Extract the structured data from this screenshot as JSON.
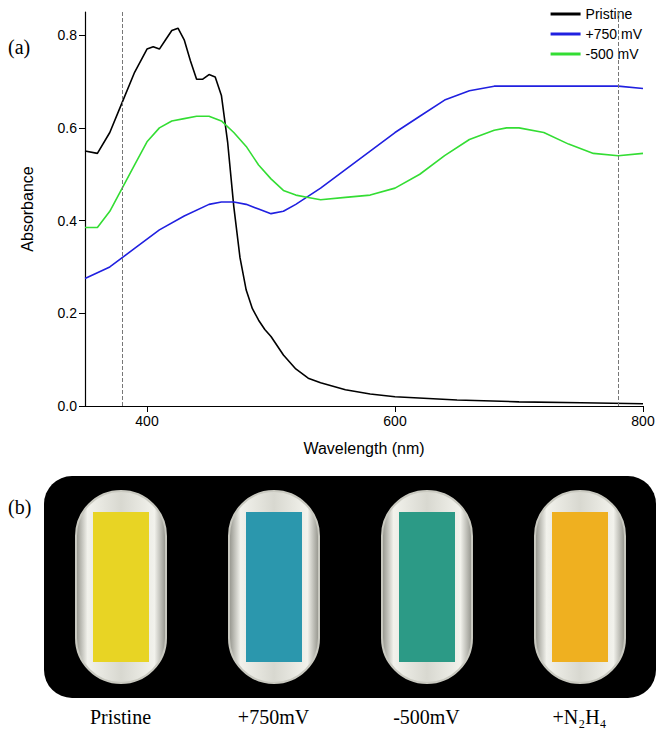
{
  "chart_data": {
    "type": "line",
    "panel_label": "(a)",
    "x_label": "Wavelength (nm)",
    "y_label": "Absorbance",
    "xlim": [
      350,
      800
    ],
    "xticks": [
      400,
      600,
      800
    ],
    "ylim": [
      0,
      0.85
    ],
    "yticks": [
      {
        "value": 0,
        "label": "0.0"
      },
      0.2,
      0.4,
      0.6,
      0.8
    ],
    "grid": false,
    "legend": "upper right",
    "vertical_lines": [
      380,
      780
    ],
    "series": [
      {
        "name": "Pristine",
        "color": "#000000",
        "line_style": "solid",
        "x": [
          350,
          360,
          370,
          380,
          390,
          400,
          405,
          410,
          415,
          420,
          425,
          430,
          435,
          440,
          445,
          450,
          455,
          460,
          465,
          470,
          475,
          480,
          485,
          490,
          495,
          500,
          510,
          520,
          530,
          540,
          560,
          580,
          600,
          650,
          700,
          750,
          800
        ],
        "values": [
          0.55,
          0.545,
          0.59,
          0.655,
          0.72,
          0.77,
          0.775,
          0.77,
          0.79,
          0.81,
          0.815,
          0.79,
          0.745,
          0.705,
          0.705,
          0.715,
          0.71,
          0.67,
          0.57,
          0.43,
          0.32,
          0.25,
          0.21,
          0.185,
          0.165,
          0.15,
          0.11,
          0.08,
          0.06,
          0.05,
          0.035,
          0.026,
          0.02,
          0.013,
          0.009,
          0.007,
          0.005
        ]
      },
      {
        "name": "+750 mV",
        "color": "#2020e0",
        "line_style": "solid",
        "x": [
          350,
          370,
          390,
          410,
          430,
          450,
          460,
          470,
          480,
          490,
          500,
          510,
          520,
          540,
          560,
          580,
          600,
          620,
          640,
          660,
          680,
          700,
          720,
          740,
          760,
          780,
          800
        ],
        "values": [
          0.275,
          0.3,
          0.34,
          0.38,
          0.41,
          0.435,
          0.44,
          0.44,
          0.435,
          0.425,
          0.415,
          0.42,
          0.435,
          0.47,
          0.51,
          0.55,
          0.59,
          0.625,
          0.66,
          0.68,
          0.69,
          0.69,
          0.69,
          0.69,
          0.69,
          0.69,
          0.685
        ]
      },
      {
        "name": "-500 mV",
        "color": "#33dd33",
        "line_style": "solid",
        "x": [
          350,
          360,
          370,
          380,
          390,
          400,
          410,
          420,
          430,
          440,
          450,
          460,
          470,
          480,
          490,
          500,
          510,
          520,
          530,
          540,
          560,
          580,
          600,
          620,
          640,
          660,
          680,
          690,
          700,
          720,
          740,
          760,
          780,
          800
        ],
        "values": [
          0.385,
          0.385,
          0.42,
          0.47,
          0.52,
          0.57,
          0.6,
          0.615,
          0.62,
          0.625,
          0.625,
          0.615,
          0.59,
          0.56,
          0.52,
          0.49,
          0.465,
          0.455,
          0.45,
          0.445,
          0.45,
          0.455,
          0.47,
          0.5,
          0.54,
          0.575,
          0.595,
          0.6,
          0.6,
          0.59,
          0.565,
          0.545,
          0.54,
          0.545
        ]
      }
    ]
  },
  "photo_panel": {
    "panel_label": "(b)",
    "samples": [
      {
        "label": "Pristine",
        "color": "#e8d424"
      },
      {
        "label": "+750mV",
        "color": "#2b97ad"
      },
      {
        "label": "-500mV",
        "color": "#2c9a86"
      },
      {
        "label": "+N₂H₄",
        "color": "#efb020"
      }
    ]
  }
}
